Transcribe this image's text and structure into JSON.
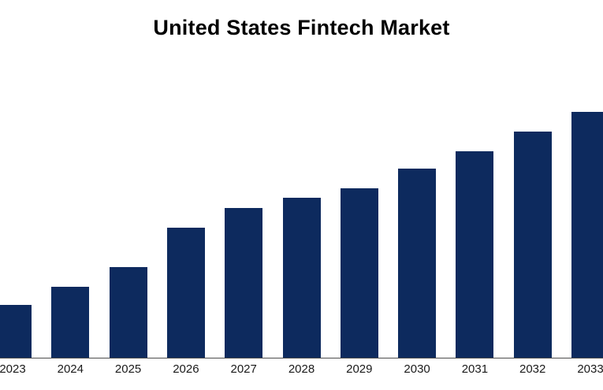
{
  "title": "United States Fintech Market",
  "colors": {
    "bar": "#0d2a5e",
    "axis": "#4d4d4d",
    "background": "#ffffff",
    "title_text": "#000000",
    "tick_text": "#1a1a1a"
  },
  "chart_data": {
    "type": "bar",
    "title": "United States Fintech Market",
    "categories": [
      "2023",
      "2024",
      "2025",
      "2026",
      "2027",
      "2028",
      "2029",
      "2030",
      "2031",
      "2032",
      "2033"
    ],
    "values": [
      21.5,
      29,
      37,
      53,
      61,
      65,
      69,
      77,
      84,
      92,
      100
    ],
    "units": "relative (y-axis unlabeled; max bar = 100)",
    "xlabel": "",
    "ylabel": "",
    "ylim": [
      0,
      115
    ],
    "gridlines": false,
    "legend": false,
    "y_axis_visible": false,
    "data_labels": false
  }
}
